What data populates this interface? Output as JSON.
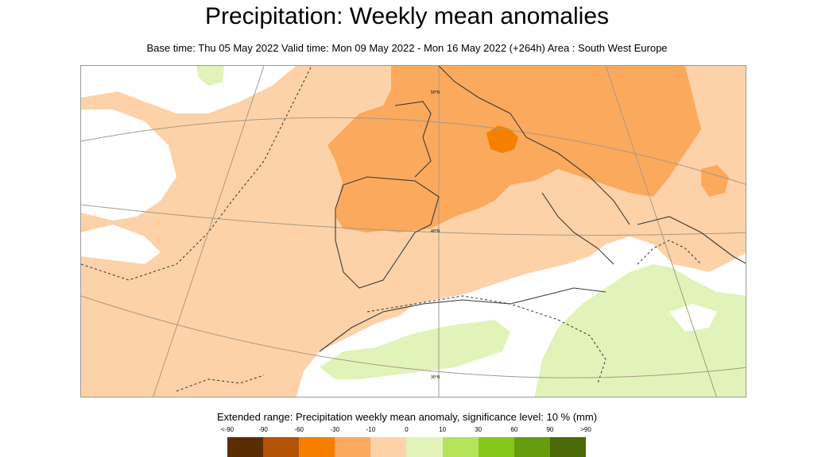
{
  "header": {
    "title": "Precipitation: Weekly mean anomalies",
    "subtitle": "Base time: Thu 05 May 2022 Valid time: Mon 09 May 2022 - Mon 16 May 2022 (+264h) Area : South West Europe"
  },
  "map": {
    "region": "South West Europe",
    "graticule_labels": [
      "50°N",
      "40°N",
      "30°N"
    ]
  },
  "legend": {
    "title": "Extended range: Precipitation weekly mean anomaly, significance level: 10 % (mm)",
    "ticks": [
      "<-90",
      "-90",
      "-60",
      "-30",
      "-10",
      "0",
      "10",
      "30",
      "60",
      "90",
      ">90"
    ],
    "colors": [
      "#5a2d00",
      "#b35306",
      "#f77f00",
      "#fba95c",
      "#fdd2a8",
      "#e1f3b9",
      "#b5e35a",
      "#86c81a",
      "#679d0c",
      "#4c6a08"
    ]
  }
}
